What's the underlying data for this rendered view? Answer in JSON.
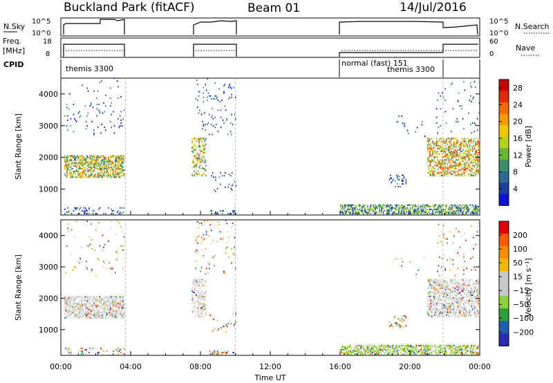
{
  "header": {
    "station": "Buckland Park (fitACF)",
    "beam": "Beam 01",
    "date": "14/Jul/2016"
  },
  "strip_panels": {
    "nsky": {
      "label": "N.Sky",
      "ticks": [
        "10^5",
        "10^0"
      ],
      "right_ticks": [
        "10^5",
        "10^0"
      ],
      "right_label": "N.Search"
    },
    "freq": {
      "label_top": "Freq.",
      "label_unit": "[MHz]",
      "ticks": [
        "18",
        "8"
      ],
      "right_ticks": [
        "60",
        "0"
      ],
      "right_label": "Nave"
    },
    "cpid": {
      "label": "CPID",
      "segments": [
        {
          "text": "themis 3300"
        },
        {
          "text": "normal (fast) 151"
        },
        {
          "text": "themis 3300"
        }
      ]
    }
  },
  "colors": {
    "power_scale": [
      "#0a14d6",
      "#1e3fa0",
      "#2b6b8f",
      "#3a8f6a",
      "#6bb534",
      "#b5d11a",
      "#f0c800",
      "#f79a00",
      "#f26a00",
      "#e02a00",
      "#c80000"
    ],
    "velocity_scale": [
      "#dc0000",
      "#ff5a00",
      "#ff8c00",
      "#f0b800",
      "#c8c8c8",
      "#c8c8c8",
      "#8cd23c",
      "#2e9e3c",
      "#1f5fb0",
      "#2a2ab4"
    ]
  },
  "chart_data": [
    {
      "type": "heatmap",
      "name": "power",
      "xlabel": "Time UT",
      "ylabel": "Slant Range [km]",
      "x_ticks": [
        "00:00",
        "04:00",
        "08:00",
        "12:00",
        "16:00",
        "20:00",
        "00:00"
      ],
      "xlim_hours": [
        0,
        24
      ],
      "y_ticks": [
        1000,
        2000,
        3000,
        4000
      ],
      "ylim": [
        180,
        4500
      ],
      "colorbar": {
        "label": "Power [dB]",
        "ticks": [
          4,
          8,
          12,
          16,
          20,
          24,
          28
        ],
        "range": [
          0,
          30
        ]
      }
    },
    {
      "type": "heatmap",
      "name": "velocity",
      "xlabel": "Time UT",
      "ylabel": "Slant Range [km]",
      "x_ticks": [
        "00:00",
        "04:00",
        "08:00",
        "12:00",
        "16:00",
        "20:00",
        "00:00"
      ],
      "xlim_hours": [
        0,
        24
      ],
      "y_ticks": [
        1000,
        2000,
        3000,
        4000
      ],
      "ylim": [
        180,
        4500
      ],
      "colorbar": {
        "label": "Velocity [m s⁻¹]",
        "ticks": [
          "200",
          "100",
          "50",
          "15",
          "−15",
          "−50",
          "−100",
          "−200"
        ]
      }
    }
  ]
}
